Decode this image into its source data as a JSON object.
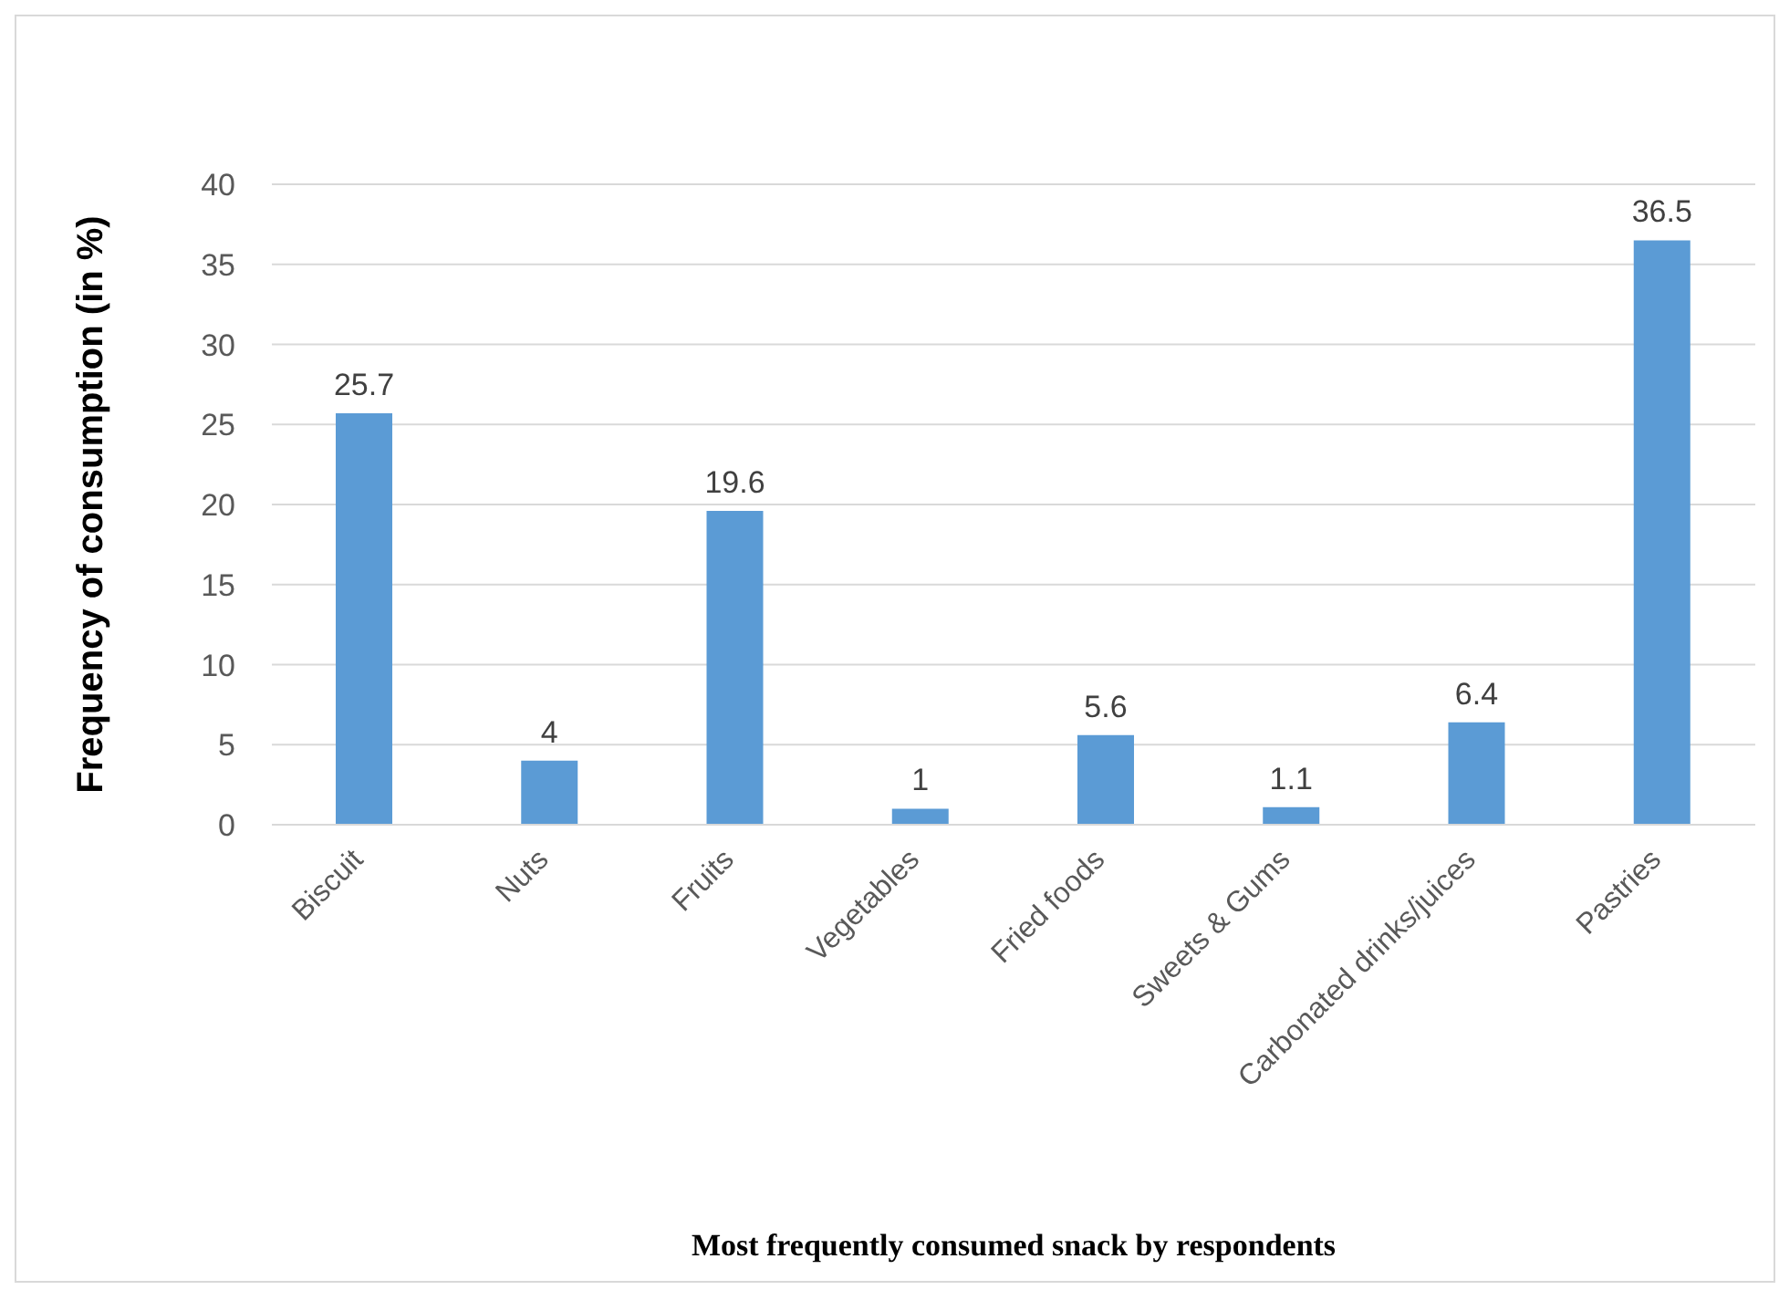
{
  "chart_data": {
    "type": "bar",
    "xlabel": "Most frequently consumed snack by respondents",
    "ylabel": "Frequency of consumption (in %)",
    "categories": [
      "Biscuit",
      "Nuts",
      "Fruits",
      "Vegetables",
      "Fried foods",
      "Sweets & Gums",
      "Carbonated drinks/juices",
      "Pastries"
    ],
    "values": [
      25.7,
      4,
      19.6,
      1,
      5.6,
      1.1,
      6.4,
      36.5
    ],
    "color": "#5b9bd5",
    "ylim": [
      0,
      40
    ],
    "yticks": [
      0,
      5,
      10,
      15,
      20,
      25,
      30,
      35,
      40
    ],
    "grid": "y",
    "data_labels": true
  }
}
